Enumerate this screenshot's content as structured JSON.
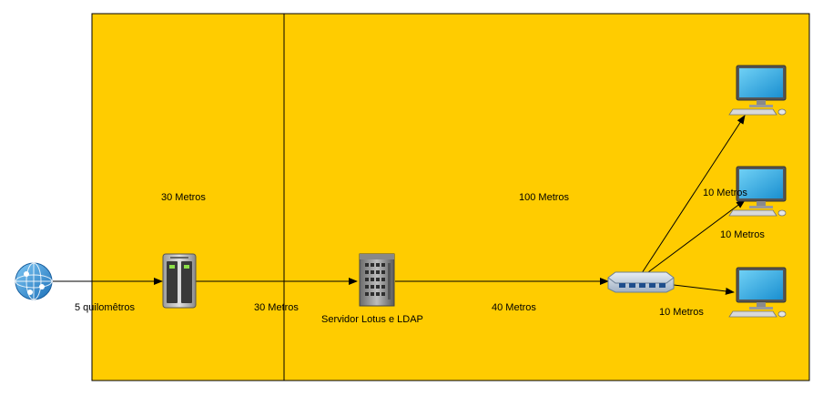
{
  "colors": {
    "area_fill": "#FFCC00",
    "area_stroke": "#000000",
    "edge": "#000000"
  },
  "areas": [
    {
      "name": "area-left"
    },
    {
      "name": "area-right"
    }
  ],
  "labels": {
    "area_left_distance": "30 Metros",
    "area_right_distance": "100 Metros",
    "internet_link": "5 quilomêtros",
    "nas_to_server": "30 Metros",
    "server_name": "Servidor Lotus e LDAP",
    "server_to_switch": "40 Metros",
    "switch_to_pc1": "10 Metros",
    "switch_to_pc2": "10 Metros",
    "switch_to_pc3": "10 Metros"
  },
  "icons": {
    "internet": "globe-icon",
    "storage": "nas-storage-icon",
    "server": "server-tower-icon",
    "switch": "network-switch-icon",
    "workstation": "desktop-computer-icon"
  }
}
